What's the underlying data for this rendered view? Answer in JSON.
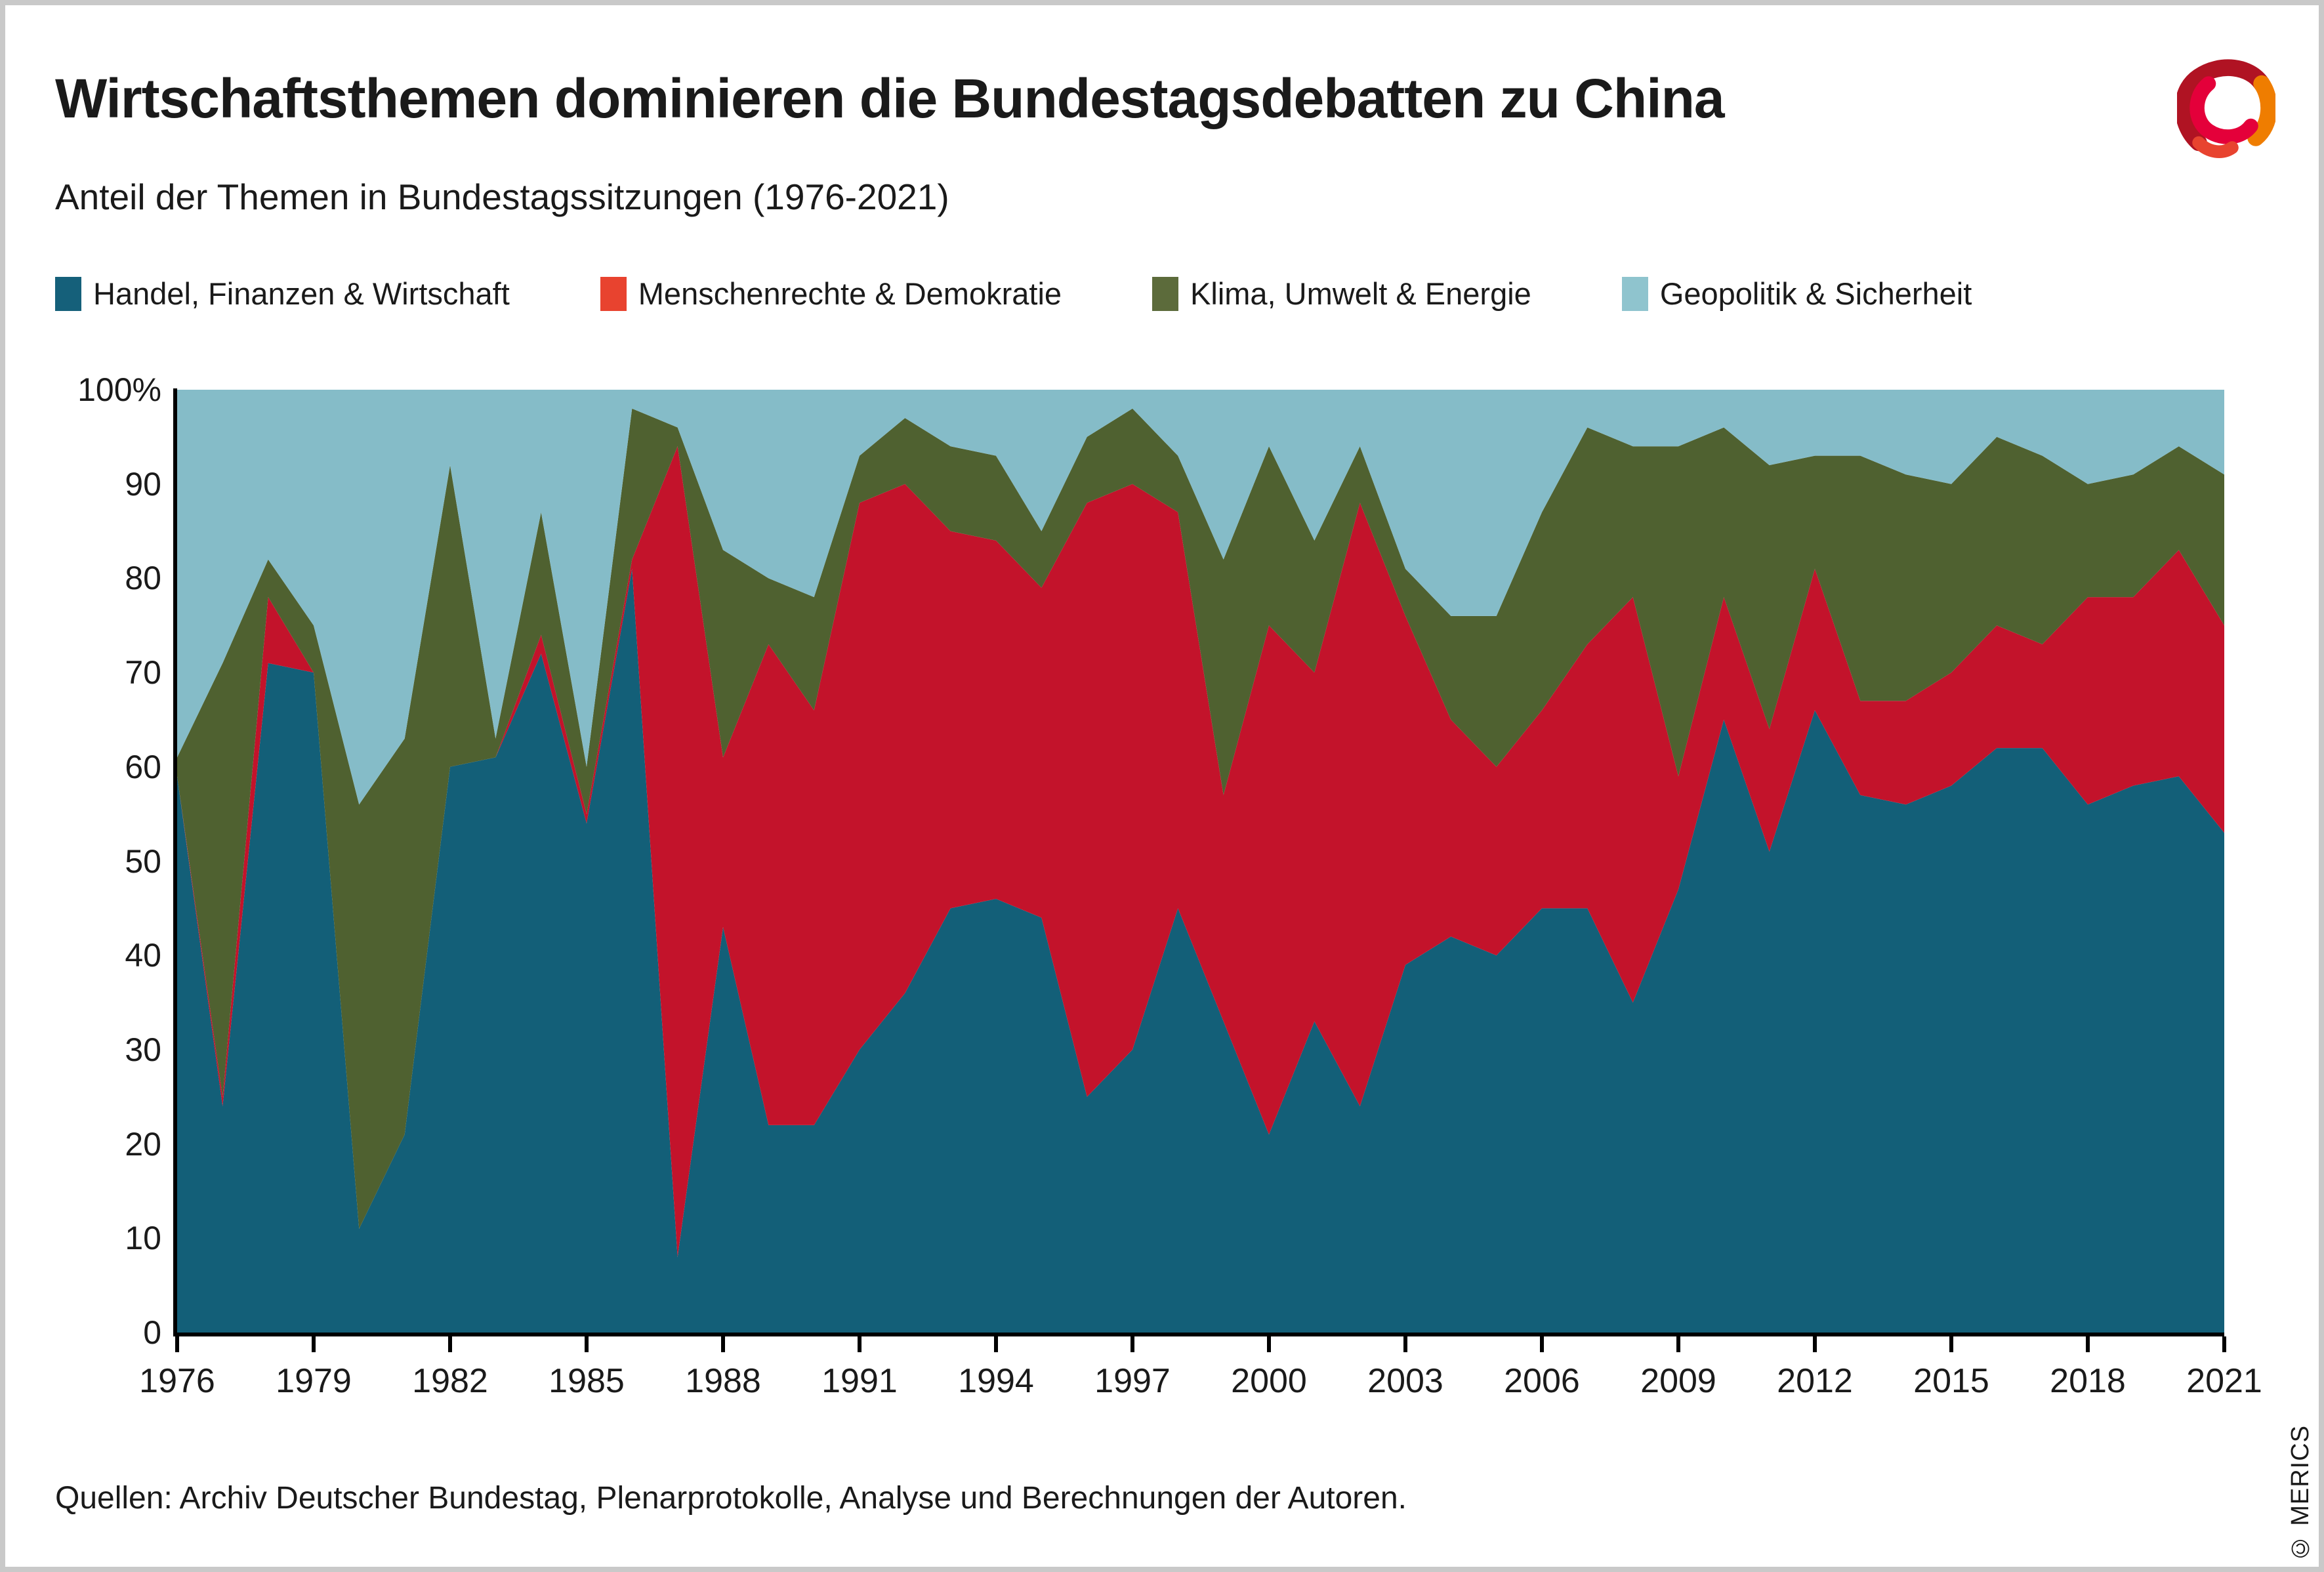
{
  "header": {
    "title": "Wirtschaftsthemen dominieren die Bundestagsdebatten zu China",
    "subtitle": "Anteil der Themen in Bundestagssitzungen (1976-2021)"
  },
  "legend": {
    "items": [
      {
        "label": "Handel, Finanzen & Wirtschaft",
        "swatch_color": "#15607A"
      },
      {
        "label": "Menschenrechte & Demokratie",
        "swatch_color": "#E8432F"
      },
      {
        "label": "Klima, Umwelt & Energie",
        "swatch_color": "#5C6B3B"
      },
      {
        "label": "Geopolitik & Sicherheit",
        "swatch_color": "#8FC4CE"
      }
    ]
  },
  "chart_data": {
    "type": "area",
    "stacked": true,
    "unit": "percent",
    "title": "Anteil der Themen in Bundestagssitzungen (1976-2021)",
    "xlabel": "",
    "ylabel": "",
    "ylim": [
      0,
      100
    ],
    "grid": false,
    "legend_position": "top",
    "x": [
      1976,
      1977,
      1978,
      1979,
      1980,
      1981,
      1982,
      1983,
      1984,
      1985,
      1986,
      1987,
      1988,
      1989,
      1990,
      1991,
      1992,
      1993,
      1994,
      1995,
      1996,
      1997,
      1998,
      1999,
      2000,
      2001,
      2002,
      2003,
      2004,
      2005,
      2006,
      2007,
      2008,
      2009,
      2010,
      2011,
      2012,
      2013,
      2014,
      2015,
      2016,
      2017,
      2018,
      2019,
      2020,
      2021
    ],
    "x_ticks": [
      1976,
      1979,
      1982,
      1985,
      1988,
      1991,
      1994,
      1997,
      2000,
      2003,
      2006,
      2009,
      2012,
      2015,
      2018,
      2021
    ],
    "y_ticks": [
      0,
      10,
      20,
      30,
      40,
      50,
      60,
      70,
      80,
      90,
      100
    ],
    "y_tick_labels": [
      "0",
      "10",
      "20",
      "30",
      "40",
      "50",
      "60",
      "70",
      "80",
      "90",
      "100%"
    ],
    "series": [
      {
        "name": "Handel, Finanzen & Wirtschaft",
        "color": "#135F78",
        "values": [
          59,
          24,
          71,
          70,
          11,
          21,
          60,
          61,
          72,
          54,
          81,
          8,
          43,
          22,
          22,
          30,
          36,
          45,
          46,
          44,
          25,
          30,
          45,
          33,
          21,
          33,
          24,
          39,
          42,
          40,
          45,
          45,
          35,
          47,
          65,
          51,
          66,
          57,
          56,
          58,
          62,
          62,
          56,
          58,
          59,
          53
        ]
      },
      {
        "name": "Menschenrechte & Demokratie",
        "color": "#C3132B",
        "values": [
          0,
          1,
          7,
          0,
          0,
          0,
          0,
          0,
          2,
          1,
          1,
          86,
          18,
          51,
          44,
          58,
          54,
          40,
          38,
          35,
          63,
          60,
          42,
          24,
          54,
          37,
          64,
          37,
          23,
          20,
          21,
          28,
          43,
          12,
          13,
          13,
          15,
          10,
          11,
          12,
          13,
          11,
          22,
          20,
          24,
          22
        ]
      },
      {
        "name": "Klima, Umwelt & Energie",
        "color": "#4F6130",
        "values": [
          2,
          46,
          4,
          5,
          45,
          42,
          32,
          2,
          13,
          5,
          16,
          2,
          22,
          7,
          12,
          5,
          7,
          9,
          9,
          6,
          7,
          8,
          6,
          25,
          19,
          14,
          6,
          5,
          11,
          16,
          21,
          23,
          16,
          35,
          18,
          28,
          12,
          26,
          24,
          20,
          20,
          20,
          12,
          13,
          11,
          16
        ]
      },
      {
        "name": "Geopolitik & Sicherheit",
        "color": "#85BCC8",
        "values": [
          39,
          29,
          18,
          25,
          44,
          37,
          8,
          37,
          13,
          40,
          2,
          4,
          17,
          20,
          22,
          7,
          3,
          6,
          7,
          15,
          5,
          2,
          7,
          18,
          6,
          16,
          6,
          19,
          24,
          24,
          13,
          4,
          6,
          6,
          4,
          8,
          7,
          7,
          9,
          10,
          5,
          7,
          10,
          9,
          6,
          9
        ]
      }
    ]
  },
  "footer": {
    "source": "Quellen: Archiv Deutscher Bundestag, Plenarprotokolle, Analyse und Berechnungen der Autoren.",
    "copyright": "© MERICS"
  },
  "colors": {
    "axis": "#000000",
    "text": "#1a1a1a",
    "background": "#ffffff",
    "frame_border": "#c9c9c9",
    "logo": [
      "#B01323",
      "#EF7D00",
      "#E4003A",
      "#E8432F"
    ]
  }
}
